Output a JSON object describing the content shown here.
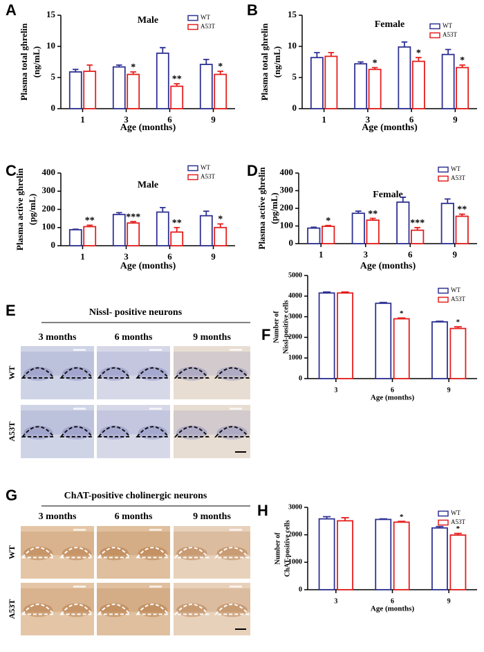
{
  "chart_data": [
    {
      "type": "bar",
      "panel": "A",
      "title": "Male",
      "ylabel": [
        "Plasma total ghrelin",
        "(ng/mL)"
      ],
      "xlabel": "Age (months)",
      "categories": [
        "1",
        "3",
        "6",
        "9"
      ],
      "ylim": [
        0,
        15
      ],
      "yticks": [
        0,
        5,
        10,
        15
      ],
      "series": [
        {
          "name": "WT",
          "color": "#2e3192",
          "values": [
            5.9,
            6.7,
            8.9,
            7.1
          ],
          "errors": [
            0.4,
            0.3,
            0.9,
            0.8
          ],
          "significance": [
            null,
            null,
            null,
            null
          ]
        },
        {
          "name": "A53T",
          "color": "#e41e1c",
          "values": [
            6.0,
            5.5,
            3.6,
            5.5
          ],
          "errors": [
            1.0,
            0.4,
            0.4,
            0.5
          ],
          "significance": [
            null,
            "*",
            "**",
            "*"
          ]
        }
      ]
    },
    {
      "type": "bar",
      "panel": "B",
      "title": "Female",
      "ylabel": [
        "Plasma total ghrelin",
        "(ng/mL)"
      ],
      "xlabel": "Age (months)",
      "categories": [
        "1",
        "3",
        "6",
        "9"
      ],
      "ylim": [
        0,
        15
      ],
      "yticks": [
        0,
        5,
        10,
        15
      ],
      "series": [
        {
          "name": "WT",
          "color": "#2e3192",
          "values": [
            8.2,
            7.2,
            9.9,
            8.7
          ],
          "errors": [
            0.8,
            0.3,
            0.8,
            0.8
          ],
          "significance": [
            null,
            null,
            null,
            null
          ]
        },
        {
          "name": "A53T",
          "color": "#e41e1c",
          "values": [
            8.4,
            6.3,
            7.6,
            6.6
          ],
          "errors": [
            0.6,
            0.3,
            0.6,
            0.4
          ],
          "significance": [
            null,
            "*",
            "*",
            "*"
          ]
        }
      ]
    },
    {
      "type": "bar",
      "panel": "C",
      "title": "Male",
      "ylabel": [
        "Plasma active ghrelin",
        "(pg/mL)"
      ],
      "xlabel": "Age (months)",
      "categories": [
        "1",
        "3",
        "6",
        "9"
      ],
      "ylim": [
        0,
        400
      ],
      "yticks": [
        0,
        100,
        200,
        300,
        400
      ],
      "series": [
        {
          "name": "WT",
          "color": "#2e3192",
          "values": [
            88,
            172,
            185,
            165
          ],
          "errors": [
            3,
            10,
            25,
            25
          ],
          "significance": [
            null,
            null,
            null,
            null
          ]
        },
        {
          "name": "A53T",
          "color": "#e41e1c",
          "values": [
            105,
            125,
            75,
            100
          ],
          "errors": [
            8,
            8,
            25,
            20
          ],
          "significance": [
            "**",
            "***",
            "**",
            "*"
          ]
        }
      ]
    },
    {
      "type": "bar",
      "panel": "D",
      "title": "Female",
      "ylabel": [
        "Plasma active ghrelin",
        "(pg/mL)"
      ],
      "xlabel": "Age (months)",
      "categories": [
        "1",
        "3",
        "6",
        "9"
      ],
      "ylim": [
        0,
        400
      ],
      "yticks": [
        0,
        100,
        200,
        300,
        400
      ],
      "series": [
        {
          "name": "WT",
          "color": "#2e3192",
          "values": [
            88,
            172,
            235,
            228
          ],
          "errors": [
            5,
            12,
            28,
            25
          ],
          "significance": [
            null,
            null,
            null,
            null
          ]
        },
        {
          "name": "A53T",
          "color": "#e41e1c",
          "values": [
            98,
            133,
            76,
            155
          ],
          "errors": [
            5,
            10,
            15,
            12
          ],
          "significance": [
            "*",
            "**",
            "***",
            "**"
          ]
        }
      ]
    },
    {
      "type": "bar",
      "panel": "F",
      "ylabel": [
        "Number of",
        "Nissl-positive cells"
      ],
      "xlabel": "Age (months)",
      "categories": [
        "3",
        "6",
        "9"
      ],
      "ylim": [
        0,
        5000
      ],
      "yticks": [
        0,
        1000,
        2000,
        3000,
        4000,
        5000
      ],
      "series": [
        {
          "name": "WT",
          "color": "#2e3192",
          "values": [
            4150,
            3650,
            2750
          ],
          "errors": [
            50,
            40,
            30
          ],
          "significance": [
            null,
            null,
            null
          ]
        },
        {
          "name": "A53T",
          "color": "#e41e1c",
          "values": [
            4150,
            2900,
            2430
          ],
          "errors": [
            50,
            40,
            80
          ],
          "significance": [
            null,
            "*",
            "*"
          ]
        }
      ]
    },
    {
      "type": "bar",
      "panel": "H",
      "ylabel": [
        "Number of",
        "ChAT-positive cells"
      ],
      "xlabel": "Age (months)",
      "categories": [
        "3",
        "6",
        "9"
      ],
      "ylim": [
        0,
        3000
      ],
      "yticks": [
        0,
        1000,
        2000,
        3000
      ],
      "series": [
        {
          "name": "WT",
          "color": "#2e3192",
          "values": [
            2580,
            2560,
            2250
          ],
          "errors": [
            80,
            20,
            50
          ],
          "significance": [
            null,
            null,
            null
          ]
        },
        {
          "name": "A53T",
          "color": "#e41e1c",
          "values": [
            2510,
            2460,
            1990
          ],
          "errors": [
            110,
            30,
            60
          ],
          "significance": [
            null,
            "*",
            "*"
          ]
        }
      ]
    }
  ],
  "image_panels": [
    {
      "panel": "E",
      "title": "Nissl- positive neurons",
      "columns": [
        "3 months",
        "6 months",
        "9 months"
      ],
      "rows": [
        "WT",
        "A53T"
      ]
    },
    {
      "panel": "G",
      "title": "ChAT-positive cholinergic neurons",
      "columns": [
        "3 months",
        "6 months",
        "9 months"
      ],
      "rows": [
        "WT",
        "A53T"
      ]
    }
  ]
}
